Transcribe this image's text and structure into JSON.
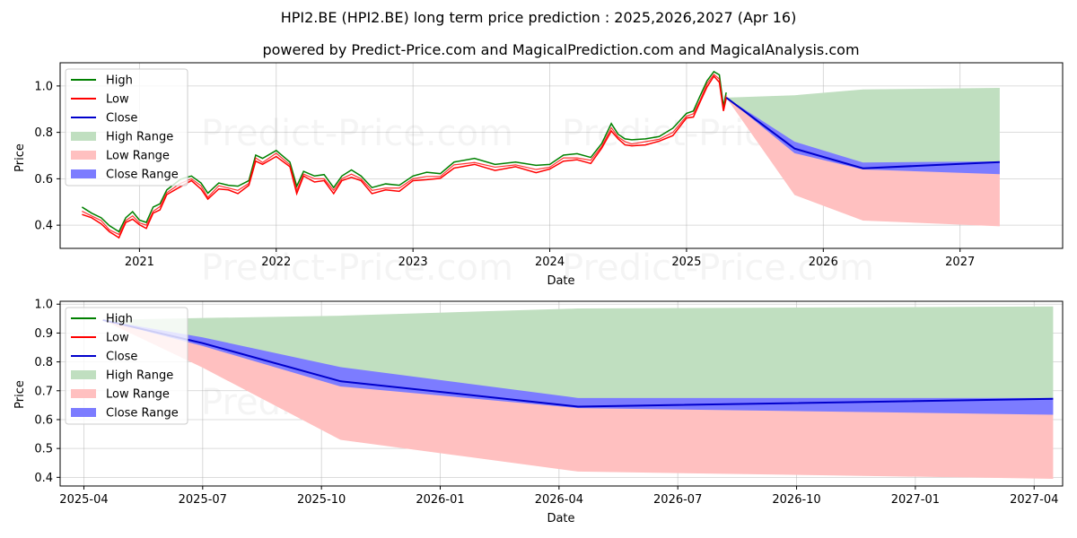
{
  "titles": {
    "main": "HPI2.BE (HPI2.BE) long term price prediction : 2025,2026,2027 (Apr 16)",
    "sub": "powered by Predict-Price.com and MagicalPrediction.com and MagicalAnalysis.com"
  },
  "watermark": "Predict-Price.com",
  "colors": {
    "high": "#008000",
    "low": "#ff0000",
    "close": "#0000cc",
    "high_range": "#c0dfc0",
    "low_range": "#ffc0c0",
    "close_range": "#7c7cff"
  },
  "legend": [
    "High",
    "Low",
    "Close",
    "High Range",
    "Low Range",
    "Close Range"
  ],
  "chart_data": [
    {
      "type": "line",
      "xlabel": "Date",
      "ylabel": "Price",
      "x_range": [
        2020.42,
        2027.75
      ],
      "ylim": [
        0.3,
        1.1
      ],
      "x_ticks": [
        {
          "value": 2021,
          "label": "2021"
        },
        {
          "value": 2022,
          "label": "2022"
        },
        {
          "value": 2023,
          "label": "2023"
        },
        {
          "value": 2024,
          "label": "2024"
        },
        {
          "value": 2025,
          "label": "2025"
        },
        {
          "value": 2026,
          "label": "2026"
        },
        {
          "value": 2027,
          "label": "2027"
        }
      ],
      "y_ticks": [
        0.4,
        0.6,
        0.8,
        1.0
      ],
      "grid": true,
      "legend_position": "upper-left",
      "history": {
        "x": [
          2020.58,
          2020.65,
          2020.72,
          2020.78,
          2020.85,
          2020.9,
          2020.95,
          2021.0,
          2021.05,
          2021.1,
          2021.15,
          2021.2,
          2021.3,
          2021.38,
          2021.45,
          2021.5,
          2021.58,
          2021.65,
          2021.72,
          2021.8,
          2021.85,
          2021.9,
          2022.0,
          2022.1,
          2022.15,
          2022.2,
          2022.28,
          2022.35,
          2022.42,
          2022.48,
          2022.55,
          2022.62,
          2022.7,
          2022.8,
          2022.9,
          2023.0,
          2023.1,
          2023.2,
          2023.3,
          2023.45,
          2023.6,
          2023.75,
          2023.9,
          2024.0,
          2024.1,
          2024.2,
          2024.3,
          2024.38,
          2024.45,
          2024.5,
          2024.55,
          2024.6,
          2024.7,
          2024.8,
          2024.9,
          2025.0,
          2025.05,
          2025.1,
          2025.15,
          2025.2,
          2025.24,
          2025.27,
          2025.29
        ],
        "close": [
          0.46,
          0.44,
          0.42,
          0.38,
          0.36,
          0.42,
          0.44,
          0.41,
          0.4,
          0.46,
          0.48,
          0.54,
          0.58,
          0.6,
          0.57,
          0.52,
          0.57,
          0.56,
          0.55,
          0.58,
          0.69,
          0.67,
          0.71,
          0.66,
          0.55,
          0.62,
          0.6,
          0.6,
          0.55,
          0.6,
          0.62,
          0.6,
          0.55,
          0.56,
          0.56,
          0.6,
          0.61,
          0.61,
          0.66,
          0.67,
          0.65,
          0.66,
          0.64,
          0.65,
          0.69,
          0.69,
          0.68,
          0.74,
          0.82,
          0.78,
          0.76,
          0.75,
          0.76,
          0.77,
          0.8,
          0.87,
          0.88,
          0.94,
          1.01,
          1.05,
          1.03,
          0.9,
          0.96
        ]
      },
      "forecast": {
        "x": [
          2025.29,
          2025.79,
          2026.29,
          2027.29
        ],
        "close": [
          0.95,
          0.73,
          0.645,
          0.672
        ],
        "close_upper": [
          0.95,
          0.76,
          0.67,
          0.675
        ],
        "close_lower": [
          0.95,
          0.71,
          0.64,
          0.62
        ],
        "high_upper": [
          0.95,
          0.96,
          0.985,
          0.992
        ],
        "low_lower": [
          0.95,
          0.53,
          0.42,
          0.395
        ]
      }
    },
    {
      "type": "line",
      "xlabel": "Date",
      "ylabel": "Price",
      "x_range": [
        2025.2,
        2027.31
      ],
      "ylim": [
        0.37,
        1.01
      ],
      "x_ticks": [
        {
          "value": 2025.25,
          "label": "2025-04"
        },
        {
          "value": 2025.5,
          "label": "2025-07"
        },
        {
          "value": 2025.75,
          "label": "2025-10"
        },
        {
          "value": 2026.0,
          "label": "2026-01"
        },
        {
          "value": 2026.25,
          "label": "2026-04"
        },
        {
          "value": 2026.5,
          "label": "2026-07"
        },
        {
          "value": 2026.75,
          "label": "2026-10"
        },
        {
          "value": 2027.0,
          "label": "2027-01"
        },
        {
          "value": 2027.25,
          "label": "2027-04"
        }
      ],
      "y_ticks": [
        0.4,
        0.5,
        0.6,
        0.7,
        0.8,
        0.9,
        1.0
      ],
      "grid": true,
      "legend_position": "upper-left",
      "forecast": {
        "x": [
          2025.29,
          2025.5,
          2025.79,
          2026.29,
          2027.29
        ],
        "close": [
          0.945,
          0.865,
          0.733,
          0.645,
          0.672
        ],
        "close_upper": [
          0.945,
          0.885,
          0.782,
          0.675,
          0.675
        ],
        "close_lower": [
          0.945,
          0.855,
          0.715,
          0.64,
          0.617
        ],
        "high_upper": [
          0.945,
          0.952,
          0.96,
          0.985,
          0.992
        ],
        "low_lower": [
          0.945,
          0.78,
          0.53,
          0.42,
          0.395
        ]
      }
    }
  ]
}
